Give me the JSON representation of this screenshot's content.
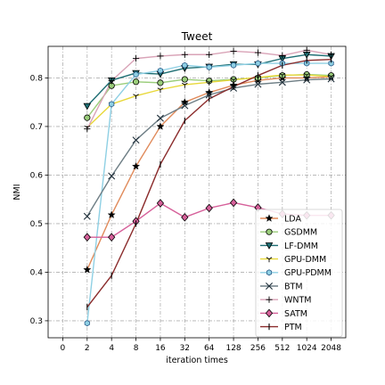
{
  "chart_data": {
    "type": "line",
    "title": "Tweet",
    "xlabel": "iteration times",
    "ylabel": "NMI",
    "x_ticks": [
      "0",
      "2",
      "4",
      "8",
      "16",
      "32",
      "64",
      "128",
      "256",
      "512",
      "1024",
      "2048"
    ],
    "x": [
      "2",
      "4",
      "8",
      "16",
      "32",
      "64",
      "128",
      "256",
      "512",
      "1024",
      "2048"
    ],
    "y_ticks": [
      "0.3",
      "0.4",
      "0.5",
      "0.6",
      "0.7",
      "0.8"
    ],
    "ylim": [
      0.265,
      0.865
    ],
    "grid": true,
    "legend_position": "lower-right",
    "series": [
      {
        "name": "LDA",
        "color": "#e08a5a",
        "marker": "star",
        "values": [
          0.405,
          0.518,
          0.618,
          0.7,
          0.75,
          0.77,
          0.785,
          0.795,
          0.8,
          0.8,
          0.802
        ]
      },
      {
        "name": "GSDMM",
        "color": "#9acd7a",
        "marker": "circle",
        "values": [
          0.718,
          0.784,
          0.792,
          0.79,
          0.797,
          0.794,
          0.797,
          0.8,
          0.805,
          0.807,
          0.805
        ]
      },
      {
        "name": "LF-DMM",
        "color": "#1e6e73",
        "marker": "triangle-down",
        "values": [
          0.742,
          0.795,
          0.81,
          0.808,
          0.82,
          0.823,
          0.828,
          0.828,
          0.84,
          0.848,
          0.845
        ]
      },
      {
        "name": "GPU-DMM",
        "color": "#e8d83a",
        "marker": "tri",
        "values": [
          0.698,
          0.746,
          0.763,
          0.776,
          0.786,
          0.791,
          0.796,
          0.801,
          0.806,
          0.806,
          0.803
        ]
      },
      {
        "name": "GPU-PDMM",
        "color": "#8fd0e4",
        "marker": "hexagon",
        "values": [
          0.295,
          0.746,
          0.807,
          0.815,
          0.826,
          0.822,
          0.826,
          0.83,
          0.83,
          0.83,
          0.83
        ]
      },
      {
        "name": "BTM",
        "color": "#6e7e85",
        "marker": "x",
        "values": [
          0.515,
          0.598,
          0.672,
          0.717,
          0.743,
          0.765,
          0.779,
          0.787,
          0.791,
          0.796,
          0.798
        ]
      },
      {
        "name": "WNTM",
        "color": "#d9a3b7",
        "marker": "plus",
        "values": [
          0.695,
          0.794,
          0.84,
          0.845,
          0.848,
          0.848,
          0.855,
          0.852,
          0.846,
          0.857,
          0.848
        ]
      },
      {
        "name": "SATM",
        "color": "#d6609a",
        "marker": "diamond",
        "values": [
          0.472,
          0.472,
          0.505,
          0.542,
          0.513,
          0.532,
          0.543,
          0.533,
          0.52,
          0.517,
          0.517
        ]
      },
      {
        "name": "PTM",
        "color": "#8b2c2c",
        "marker": "vbar",
        "values": [
          0.328,
          0.393,
          0.5,
          0.622,
          0.712,
          0.757,
          0.782,
          0.805,
          0.826,
          0.836,
          0.838
        ]
      }
    ]
  }
}
